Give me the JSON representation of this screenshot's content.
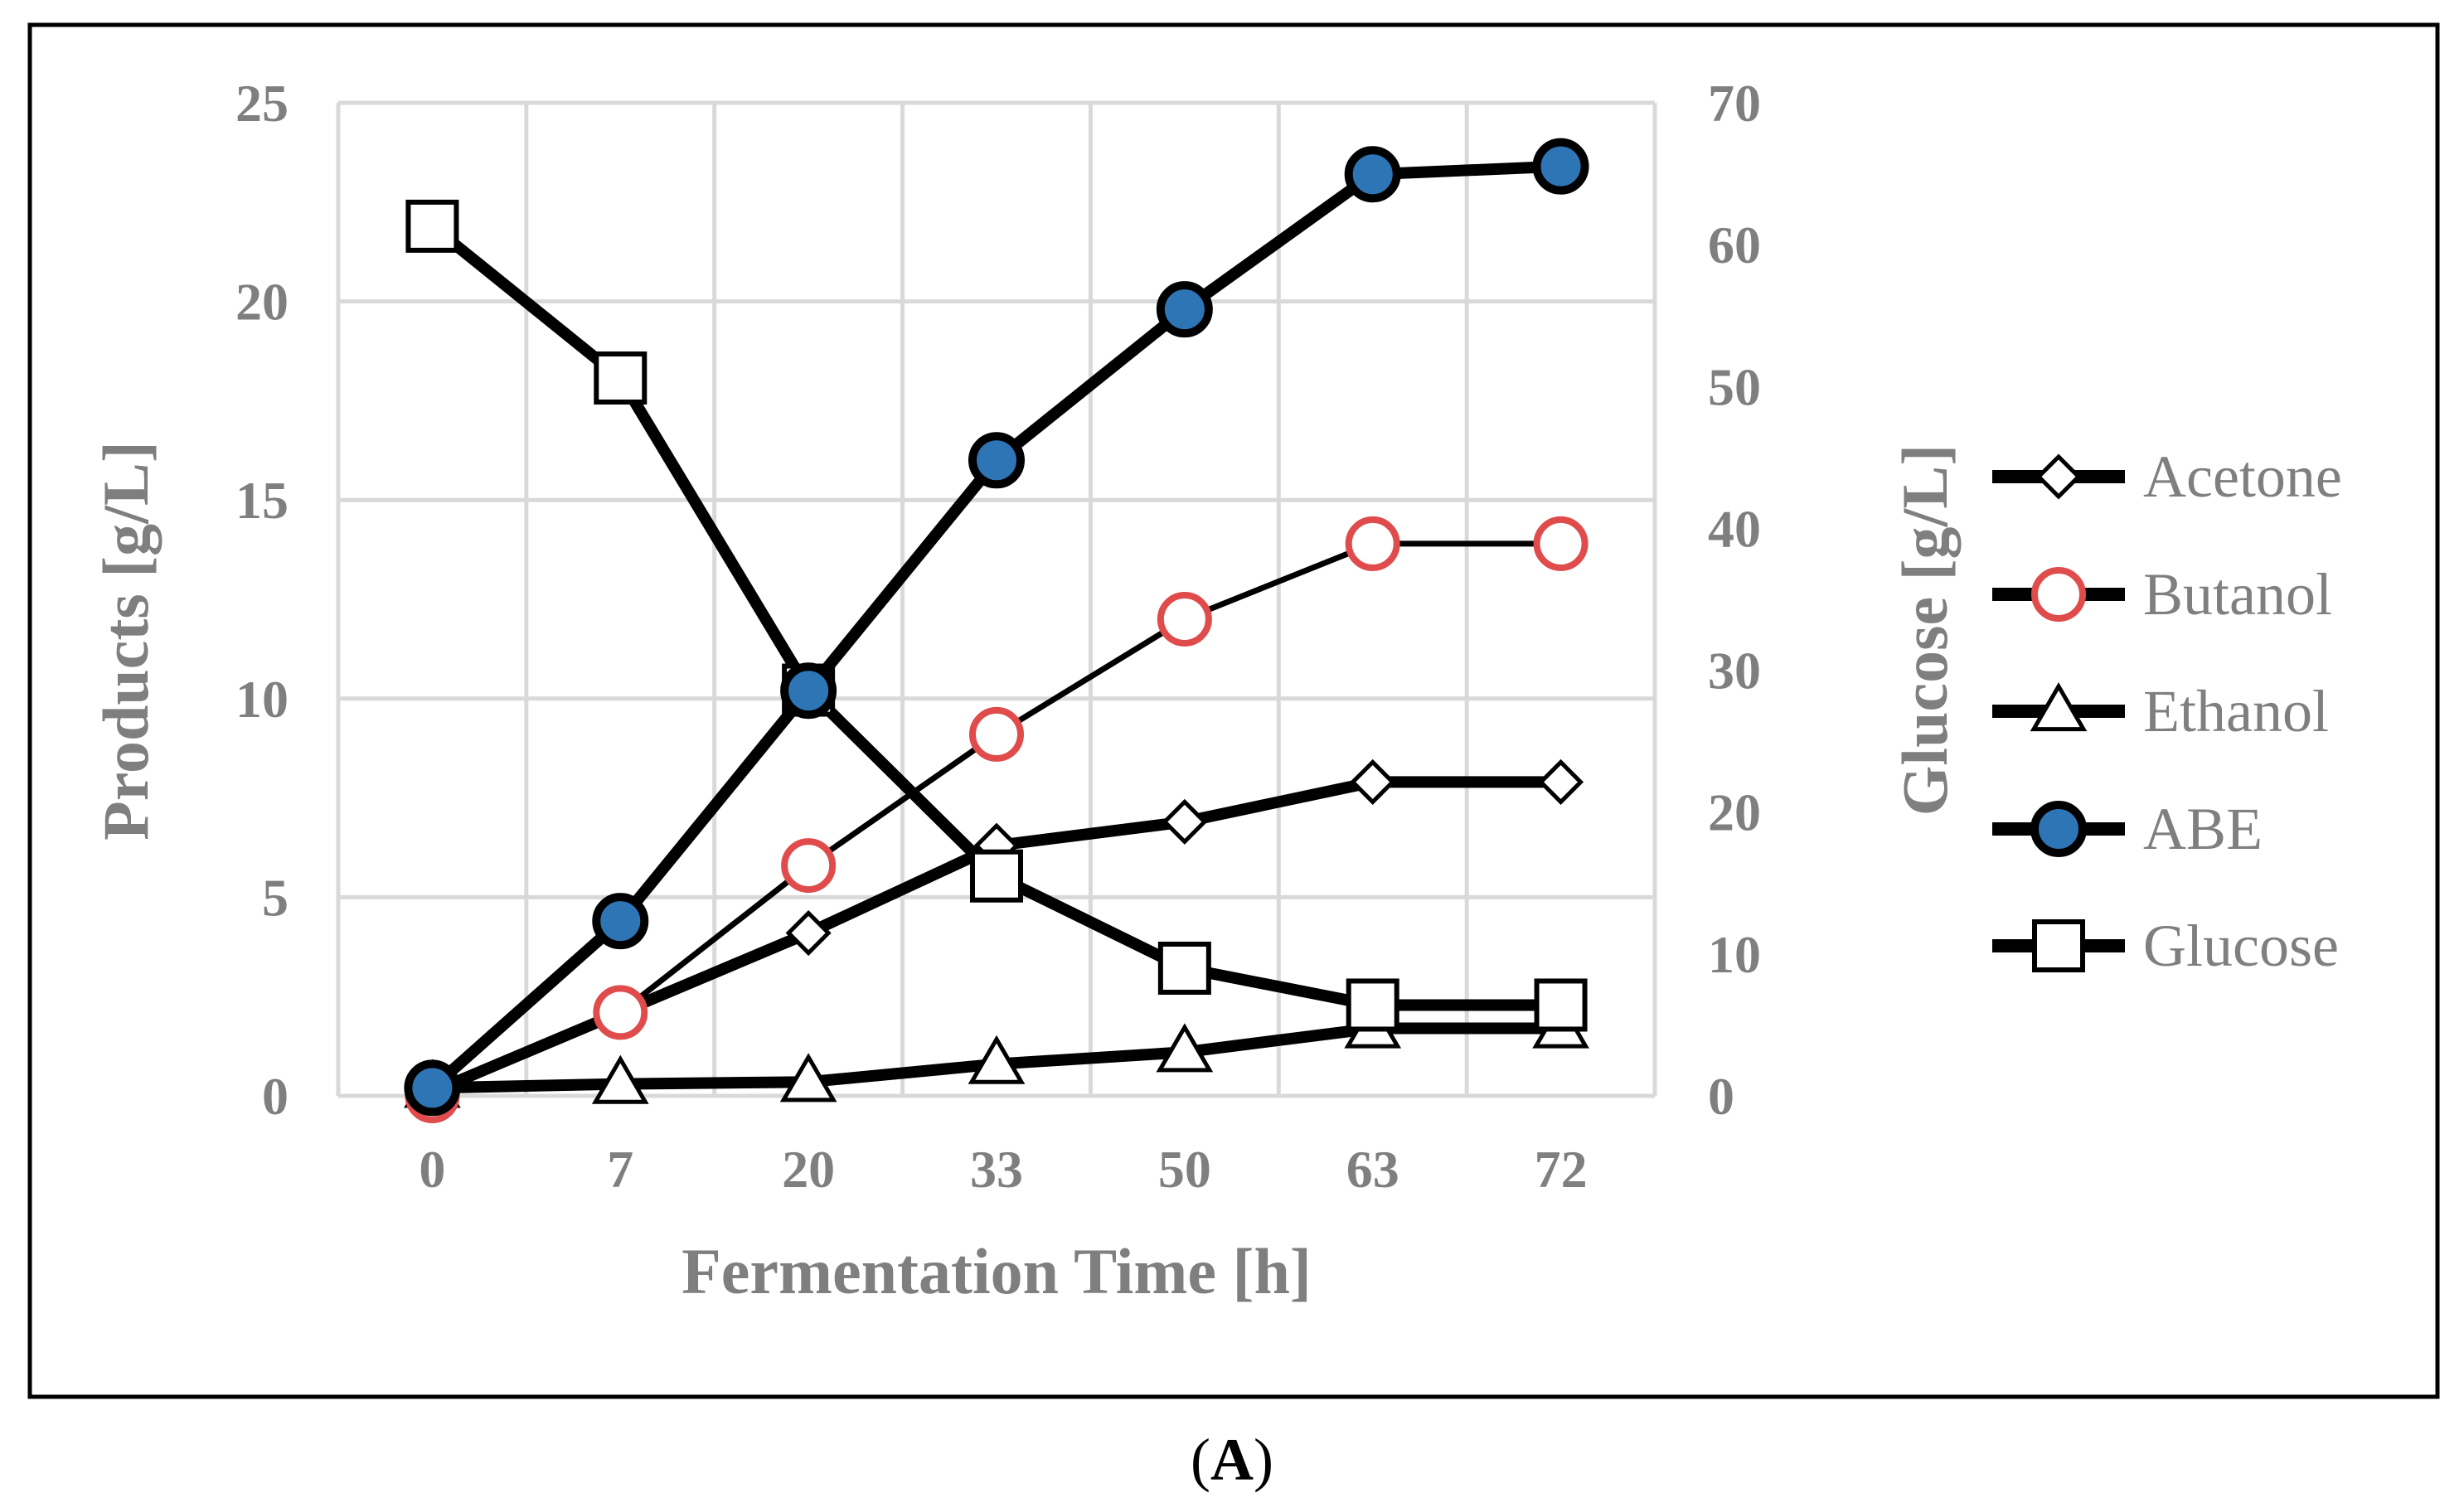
{
  "chart_data": {
    "type": "line",
    "categories": [
      "0",
      "7",
      "20",
      "33",
      "50",
      "63",
      "72"
    ],
    "xlabel": "Fermentation Time [h]",
    "ylabel": "Products [g/L]",
    "y2label": "Glucose [g/L]",
    "ylim": [
      0,
      25
    ],
    "y2lim": [
      0,
      70
    ],
    "yticks": [
      "0",
      "5",
      "10",
      "15",
      "20",
      "25"
    ],
    "y2ticks": [
      "0",
      "10",
      "20",
      "30",
      "40",
      "50",
      "60",
      "70"
    ],
    "grid": true,
    "legend_position": "right",
    "series": [
      {
        "name": "Acetone",
        "axis": "left",
        "marker": "diamond",
        "values": [
          0.1,
          2.1,
          4.1,
          6.3,
          6.9,
          7.9,
          7.9
        ]
      },
      {
        "name": "Butanol",
        "axis": "left",
        "marker": "circle-open",
        "values": [
          0.0,
          2.1,
          5.8,
          9.1,
          12.0,
          13.9,
          13.9
        ]
      },
      {
        "name": "Ethanol",
        "axis": "left",
        "marker": "triangle",
        "values": [
          0.2,
          0.3,
          0.35,
          0.8,
          1.1,
          1.7,
          1.7
        ]
      },
      {
        "name": "ABE",
        "axis": "left",
        "marker": "circle-filled",
        "values": [
          0.2,
          4.4,
          10.2,
          16.0,
          19.8,
          23.2,
          23.4
        ]
      },
      {
        "name": "Glucose",
        "axis": "right",
        "marker": "square",
        "values": [
          61.3,
          50.6,
          28.6,
          15.5,
          9.0,
          6.4,
          6.4
        ]
      }
    ],
    "colors": {
      "line": "#000000",
      "abe_fill": "#2e75b6",
      "butanol_marker": "#e04b4b",
      "grid": "#d9d9d9",
      "text": "#7f7f7f"
    },
    "panel_label": "(A)"
  }
}
